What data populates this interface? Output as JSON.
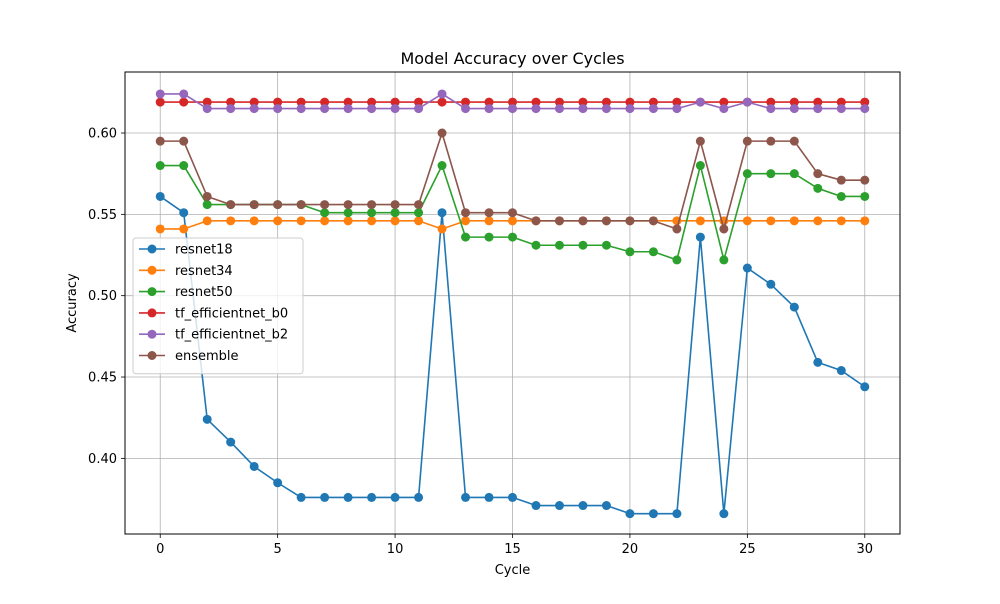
{
  "chart_data": {
    "type": "line",
    "title": "Model Accuracy over Cycles",
    "xlabel": "Cycle",
    "ylabel": "Accuracy",
    "xlim": [
      -1.5,
      31.5
    ],
    "ylim": [
      0.3535,
      0.6375
    ],
    "xticks": [
      0,
      5,
      10,
      15,
      20,
      25,
      30
    ],
    "yticks": [
      0.4,
      0.45,
      0.5,
      0.55,
      0.6
    ],
    "ytick_labels": [
      "0.40",
      "0.45",
      "0.50",
      "0.55",
      "0.60"
    ],
    "grid": true,
    "legend_position": "center-left",
    "x": [
      0,
      1,
      2,
      3,
      4,
      5,
      6,
      7,
      8,
      9,
      10,
      11,
      12,
      13,
      14,
      15,
      16,
      17,
      18,
      19,
      20,
      21,
      22,
      23,
      24,
      25,
      26,
      27,
      28,
      29,
      30
    ],
    "series": [
      {
        "name": "resnet18",
        "color": "#1f77b4",
        "values": [
          0.561,
          0.551,
          0.424,
          0.41,
          0.395,
          0.385,
          0.376,
          0.376,
          0.376,
          0.376,
          0.376,
          0.376,
          0.551,
          0.376,
          0.376,
          0.376,
          0.371,
          0.371,
          0.371,
          0.371,
          0.366,
          0.366,
          0.366,
          0.536,
          0.366,
          0.517,
          0.507,
          0.493,
          0.459,
          0.454,
          0.444
        ]
      },
      {
        "name": "resnet34",
        "color": "#ff7f0e",
        "values": [
          0.541,
          0.541,
          0.546,
          0.546,
          0.546,
          0.546,
          0.546,
          0.546,
          0.546,
          0.546,
          0.546,
          0.546,
          0.541,
          0.546,
          0.546,
          0.546,
          0.546,
          0.546,
          0.546,
          0.546,
          0.546,
          0.546,
          0.546,
          0.546,
          0.546,
          0.546,
          0.546,
          0.546,
          0.546,
          0.546,
          0.546
        ]
      },
      {
        "name": "resnet50",
        "color": "#2ca02c",
        "values": [
          0.58,
          0.58,
          0.556,
          0.556,
          0.556,
          0.556,
          0.556,
          0.551,
          0.551,
          0.551,
          0.551,
          0.551,
          0.58,
          0.536,
          0.536,
          0.536,
          0.531,
          0.531,
          0.531,
          0.531,
          0.527,
          0.527,
          0.522,
          0.58,
          0.522,
          0.575,
          0.575,
          0.575,
          0.566,
          0.561,
          0.561
        ]
      },
      {
        "name": "tf_efficientnet_b0",
        "color": "#d62728",
        "values": [
          0.619,
          0.619,
          0.619,
          0.619,
          0.619,
          0.619,
          0.619,
          0.619,
          0.619,
          0.619,
          0.619,
          0.619,
          0.619,
          0.619,
          0.619,
          0.619,
          0.619,
          0.619,
          0.619,
          0.619,
          0.619,
          0.619,
          0.619,
          0.619,
          0.619,
          0.619,
          0.619,
          0.619,
          0.619,
          0.619,
          0.619
        ]
      },
      {
        "name": "tf_efficientnet_b2",
        "color": "#9467bd",
        "values": [
          0.624,
          0.624,
          0.615,
          0.615,
          0.615,
          0.615,
          0.615,
          0.615,
          0.615,
          0.615,
          0.615,
          0.615,
          0.624,
          0.615,
          0.615,
          0.615,
          0.615,
          0.615,
          0.615,
          0.615,
          0.615,
          0.615,
          0.615,
          0.619,
          0.615,
          0.619,
          0.615,
          0.615,
          0.615,
          0.615,
          0.615
        ]
      },
      {
        "name": "ensemble",
        "color": "#8c564b",
        "values": [
          0.595,
          0.595,
          0.561,
          0.556,
          0.556,
          0.556,
          0.556,
          0.556,
          0.556,
          0.556,
          0.556,
          0.556,
          0.6,
          0.551,
          0.551,
          0.551,
          0.546,
          0.546,
          0.546,
          0.546,
          0.546,
          0.546,
          0.541,
          0.595,
          0.541,
          0.595,
          0.595,
          0.595,
          0.575,
          0.571,
          0.571
        ]
      }
    ]
  }
}
